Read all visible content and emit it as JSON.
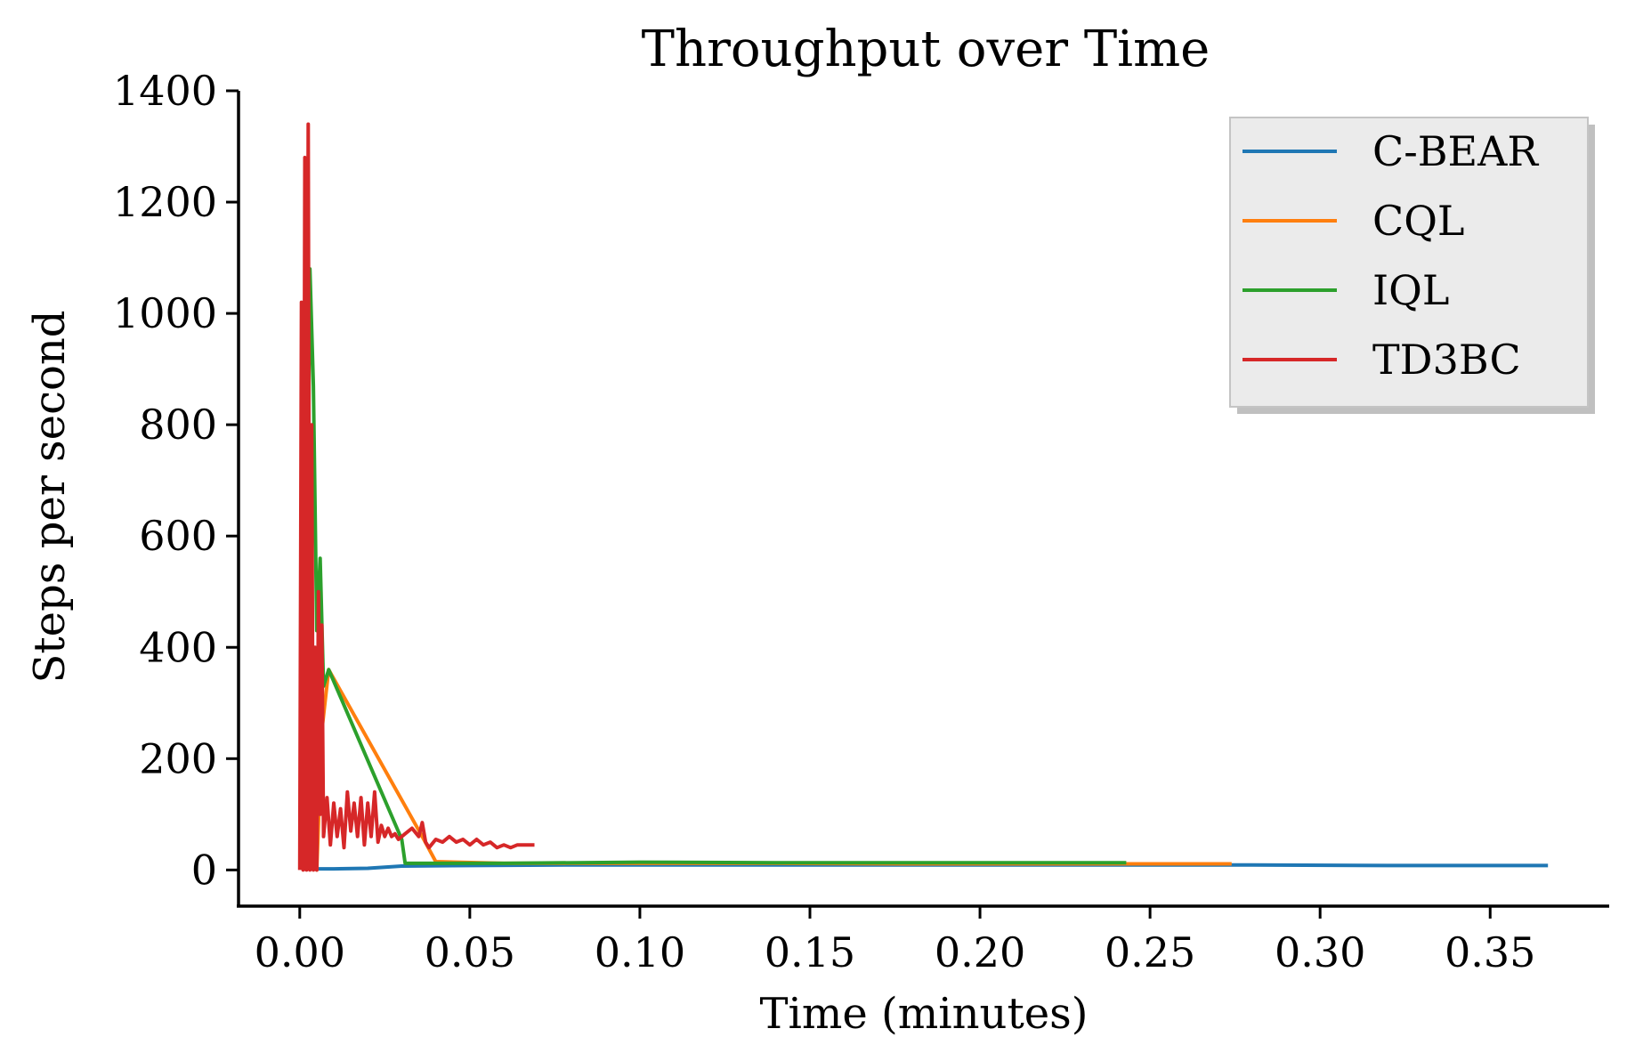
{
  "chart_data": {
    "type": "line",
    "title": "Throughput over Time",
    "xlabel": "Time (minutes)",
    "ylabel": "Steps per second",
    "xlim": [
      -0.018,
      0.385
    ],
    "ylim": [
      -65,
      1400
    ],
    "xticks": [
      0.0,
      0.05,
      0.1,
      0.15,
      0.2,
      0.25,
      0.3,
      0.35
    ],
    "xtick_labels": [
      "0.00",
      "0.05",
      "0.10",
      "0.15",
      "0.20",
      "0.25",
      "0.30",
      "0.35"
    ],
    "yticks": [
      0,
      200,
      400,
      600,
      800,
      1000,
      1200,
      1400
    ],
    "ytick_labels": [
      "0",
      "200",
      "400",
      "600",
      "800",
      "1000",
      "1200",
      "1400"
    ],
    "grid": false,
    "legend_position": "top-right",
    "series": [
      {
        "name": "C-BEAR",
        "color": "#1f77b4",
        "x": [
          0.0045,
          0.01,
          0.02,
          0.03,
          0.05,
          0.08,
          0.12,
          0.16,
          0.2,
          0.24,
          0.28,
          0.32,
          0.367
        ],
        "y": [
          2,
          2,
          3,
          7,
          8,
          9,
          9,
          9,
          9,
          9,
          9,
          8,
          8
        ]
      },
      {
        "name": "CQL",
        "color": "#ff7f0e",
        "x": [
          0.003,
          0.0035,
          0.004,
          0.0045,
          0.005,
          0.0065,
          0.0085,
          0.036,
          0.04,
          0.06,
          0.1,
          0.14,
          0.18,
          0.22,
          0.26,
          0.274
        ],
        "y": [
          0,
          15,
          90,
          5,
          0,
          250,
          360,
          60,
          15,
          12,
          12,
          12,
          11,
          11,
          11,
          11
        ]
      },
      {
        "name": "IQL",
        "color": "#2ca02c",
        "x": [
          0.001,
          0.002,
          0.003,
          0.004,
          0.005,
          0.006,
          0.007,
          0.0085,
          0.03,
          0.031,
          0.06,
          0.1,
          0.14,
          0.18,
          0.22,
          0.243
        ],
        "y": [
          0,
          300,
          1080,
          870,
          430,
          560,
          330,
          360,
          55,
          12,
          12,
          14,
          13,
          13,
          13,
          13
        ]
      },
      {
        "name": "TD3BC",
        "color": "#d62728",
        "x": [
          0.0,
          0.0005,
          0.001,
          0.0015,
          0.002,
          0.0025,
          0.003,
          0.0035,
          0.004,
          0.0045,
          0.005,
          0.0055,
          0.006,
          0.0065,
          0.007,
          0.008,
          0.009,
          0.01,
          0.011,
          0.012,
          0.013,
          0.014,
          0.015,
          0.016,
          0.017,
          0.018,
          0.019,
          0.02,
          0.021,
          0.022,
          0.023,
          0.024,
          0.025,
          0.026,
          0.027,
          0.028,
          0.029,
          0.03,
          0.031,
          0.033,
          0.035,
          0.036,
          0.037,
          0.038,
          0.04,
          0.042,
          0.044,
          0.046,
          0.048,
          0.05,
          0.052,
          0.054,
          0.056,
          0.058,
          0.06,
          0.062,
          0.064,
          0.066,
          0.069
        ],
        "y": [
          0,
          1020,
          0,
          1280,
          0,
          1340,
          0,
          800,
          0,
          400,
          0,
          500,
          100,
          440,
          60,
          130,
          45,
          120,
          60,
          110,
          40,
          140,
          70,
          120,
          60,
          130,
          45,
          120,
          60,
          140,
          50,
          80,
          60,
          75,
          60,
          65,
          55,
          60,
          65,
          75,
          60,
          85,
          50,
          40,
          55,
          50,
          60,
          50,
          55,
          45,
          55,
          45,
          50,
          40,
          45,
          40,
          45,
          45,
          45
        ]
      }
    ]
  }
}
